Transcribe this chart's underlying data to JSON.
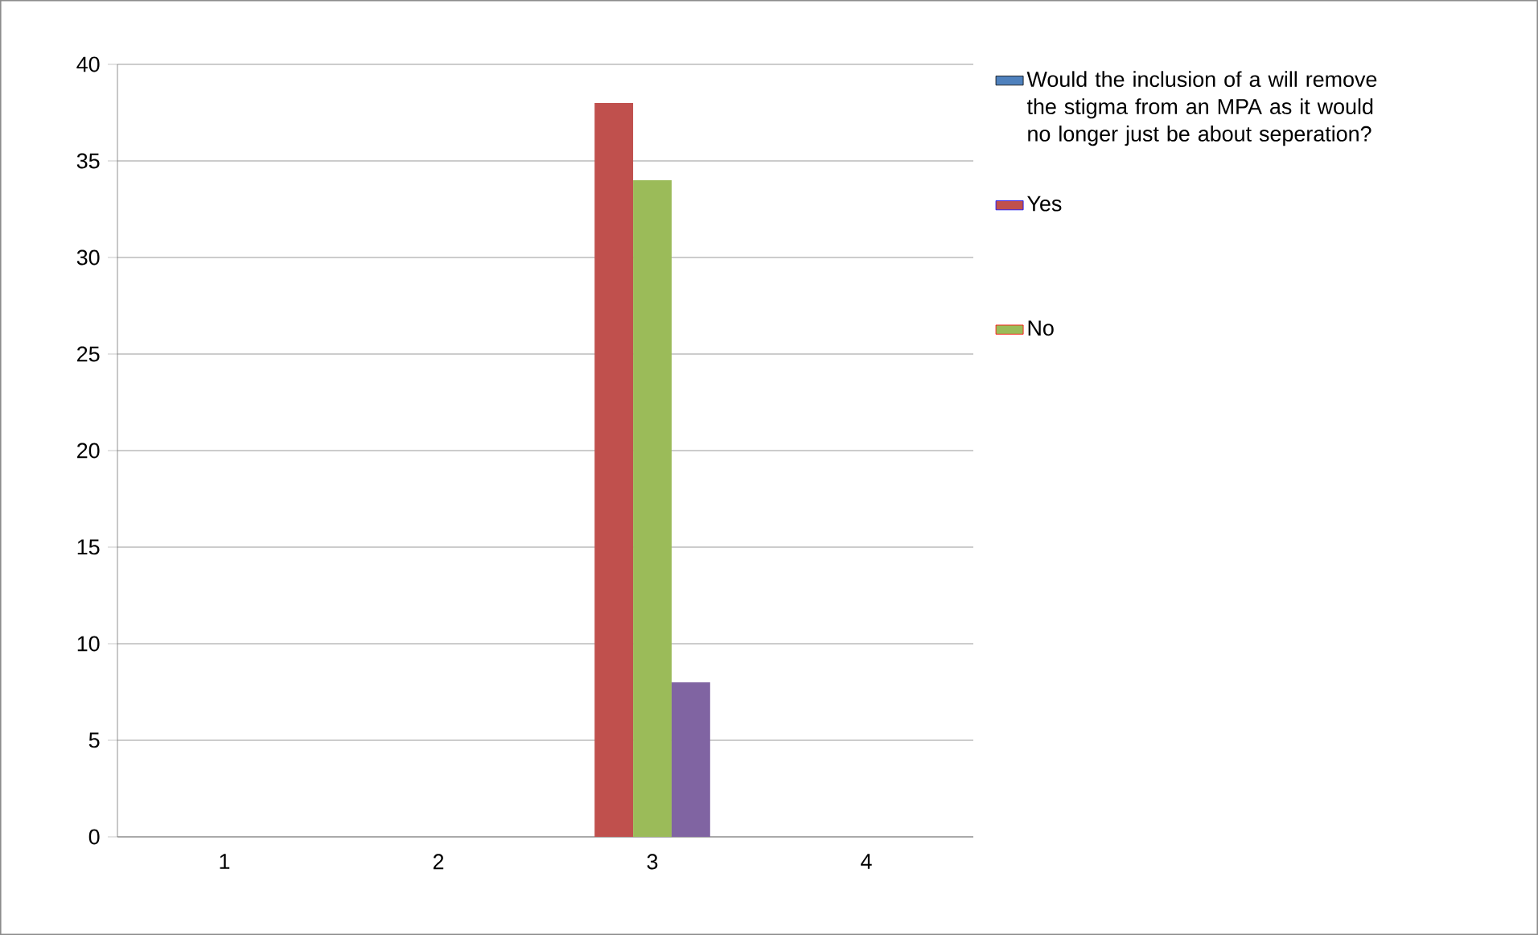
{
  "chart_data": {
    "type": "bar",
    "categories": [
      "1",
      "2",
      "3",
      "4"
    ],
    "series": [
      {
        "name": "Would the inclusion of a will remove the stigma from an MPA as it would no longer just be about seperation?",
        "color": "#4f81bd",
        "values": [
          null,
          null,
          null,
          null
        ]
      },
      {
        "name": "Yes",
        "color": "#c0504d",
        "values": [
          null,
          null,
          38,
          null
        ]
      },
      {
        "name": "No",
        "color": "#9bbb59",
        "values": [
          null,
          null,
          34,
          null
        ]
      },
      {
        "color": "#8064a2",
        "values": [
          null,
          null,
          8,
          null
        ]
      }
    ],
    "ylim": [
      0,
      40
    ],
    "yticks": [
      0,
      5,
      10,
      15,
      20,
      25,
      30,
      35,
      40
    ],
    "grid": "y",
    "legend": "right"
  }
}
